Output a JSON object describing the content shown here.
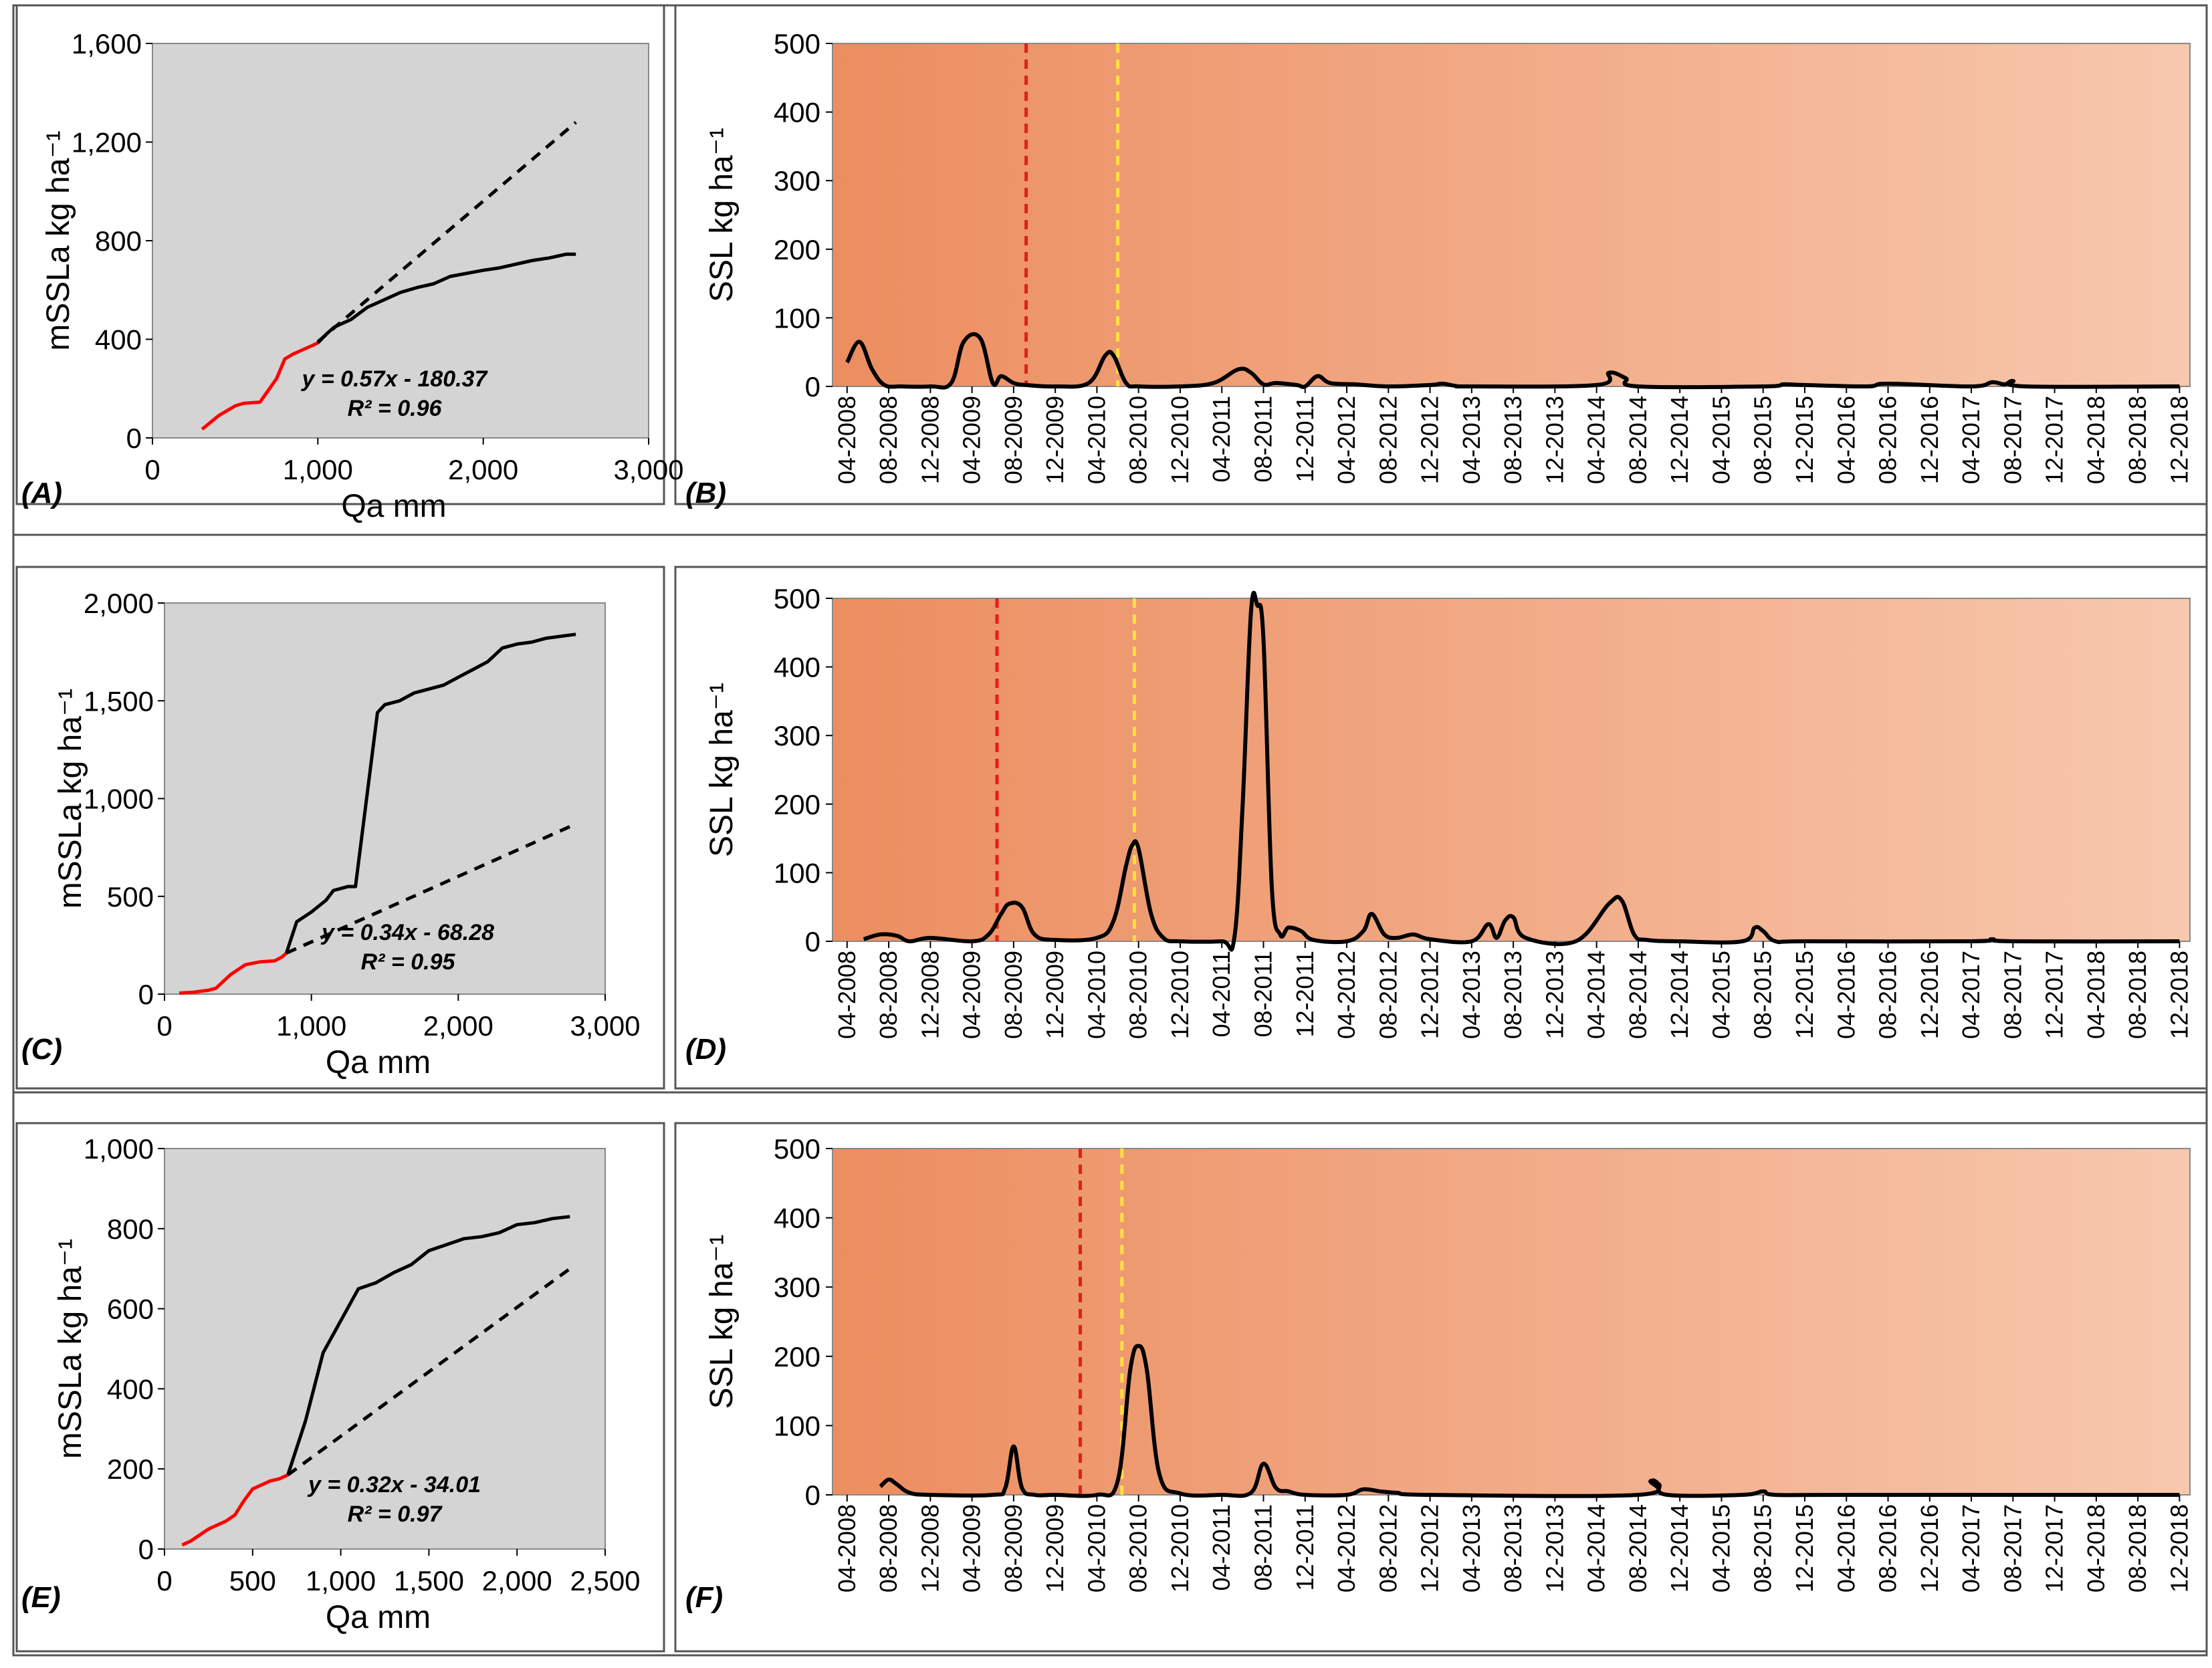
{
  "figure": {
    "type": "multi-panel",
    "panels_left_xlabel": "Qa mm",
    "panels_left_ylabel": "mSSLa kg ha⁻¹",
    "panels_right_ylabel": "SSL kg ha⁻¹",
    "colors": {
      "plot_bg_left": "#d4d4d4",
      "gradient_start": "#ec8d5f",
      "gradient_end": "#f7c8ae",
      "red_line": "#ff0000",
      "red_dashed": "#e0201a",
      "yellow_dashed": "#ffe040",
      "black": "#000000"
    }
  },
  "chart_data": [
    {
      "id": "A",
      "panel_label": "(A)",
      "type": "line",
      "xlabel": "Qa mm",
      "ylabel": "mSSLa kg ha⁻¹",
      "xlim": [
        0,
        3000
      ],
      "ylim": [
        0,
        1600
      ],
      "xticks": [
        0,
        1000,
        2000,
        3000
      ],
      "xtick_labels": [
        "0",
        "1,000",
        "2,000",
        "3,000"
      ],
      "yticks": [
        0,
        400,
        800,
        1200,
        1600
      ],
      "ytick_labels": [
        "0",
        "400",
        "800",
        "1,200",
        "1,600"
      ],
      "series": [
        {
          "name": "observed-red",
          "color": "#ff0000",
          "style": "solid",
          "x": [
            300,
            400,
            500,
            550,
            650,
            750,
            800,
            850,
            950,
            1000
          ],
          "y": [
            35,
            90,
            130,
            140,
            145,
            240,
            320,
            340,
            370,
            385
          ]
        },
        {
          "name": "observed-black",
          "color": "#000000",
          "style": "solid",
          "x": [
            1000,
            1050,
            1100,
            1200,
            1300,
            1400,
            1500,
            1600,
            1700,
            1800,
            2000,
            2100,
            2200,
            2300,
            2400,
            2500,
            2560
          ],
          "y": [
            385,
            420,
            450,
            480,
            530,
            560,
            590,
            610,
            625,
            655,
            680,
            690,
            705,
            720,
            730,
            745,
            745
          ]
        },
        {
          "name": "trend",
          "color": "#000000",
          "style": "dashed",
          "x": [
            1000,
            2560
          ],
          "y": [
            390,
            1280
          ]
        }
      ],
      "equation": "y = 0.57x - 180.37",
      "r2": "R² = 0.96"
    },
    {
      "id": "B",
      "panel_label": "(B)",
      "type": "line",
      "xlabel": "",
      "ylabel": "SSL kg ha⁻¹",
      "xlim": [
        0,
        32
      ],
      "ylim": [
        0,
        500
      ],
      "yticks": [
        0,
        100,
        200,
        300,
        400,
        500
      ],
      "categories": [
        "04-2008",
        "08-2008",
        "12-2008",
        "04-2009",
        "08-2009",
        "12-2009",
        "04-2010",
        "08-2010",
        "12-2010",
        "04-2011",
        "08-2011",
        "12-2011",
        "04-2012",
        "08-2012",
        "12-2012",
        "04-2013",
        "08-2013",
        "12-2013",
        "04-2014",
        "08-2014",
        "12-2014",
        "04-2015",
        "08-2015",
        "12-2015",
        "04-2016",
        "08-2016",
        "12-2016",
        "04-2017",
        "08-2017",
        "12-2017",
        "04-2018",
        "08-2018",
        "12-2018"
      ],
      "red_marker_x": 4.3,
      "yellow_marker_x": 6.5,
      "series": [
        {
          "name": "SSL",
          "color": "#000000",
          "x": [
            0,
            0.3,
            0.6,
            0.9,
            1.3,
            2.0,
            2.5,
            2.8,
            3.2,
            3.5,
            3.7,
            4.0,
            4.3,
            5.0,
            5.8,
            6.2,
            6.4,
            6.7,
            7.0,
            8.0,
            8.8,
            9.4,
            9.7,
            10.0,
            10.3,
            10.8,
            11.0,
            11.3,
            11.6,
            12.2,
            13.0,
            14.0,
            14.3,
            14.6,
            15.0,
            18.0,
            18.3,
            18.7,
            19.0,
            22.0,
            22.5,
            23.0,
            24.5,
            25.0,
            27.0,
            27.5,
            27.8,
            28.0,
            28.3,
            32.0
          ],
          "y": [
            35,
            65,
            25,
            2,
            0,
            0,
            5,
            65,
            70,
            5,
            15,
            5,
            2,
            0,
            5,
            45,
            45,
            5,
            0,
            0,
            5,
            25,
            20,
            3,
            5,
            2,
            0,
            15,
            5,
            3,
            0,
            2,
            4,
            1,
            0,
            2,
            20,
            12,
            0,
            0,
            3,
            2,
            0,
            4,
            0,
            6,
            3,
            8,
            0,
            0
          ]
        }
      ]
    },
    {
      "id": "C",
      "panel_label": "(C)",
      "type": "line",
      "xlabel": "Qa mm",
      "ylabel": "mSSLa kg ha⁻¹",
      "xlim": [
        0,
        3000
      ],
      "ylim": [
        0,
        2000
      ],
      "xticks": [
        0,
        1000,
        2000,
        3000
      ],
      "xtick_labels": [
        "0",
        "1,000",
        "2,000",
        "3,000"
      ],
      "yticks": [
        0,
        500,
        1000,
        1500,
        2000
      ],
      "ytick_labels": [
        "0",
        "500",
        "1,000",
        "1,500",
        "2,000"
      ],
      "series": [
        {
          "name": "observed-red",
          "color": "#ff0000",
          "style": "solid",
          "x": [
            100,
            200,
            300,
            350,
            450,
            550,
            650,
            750,
            800,
            830
          ],
          "y": [
            5,
            10,
            20,
            30,
            100,
            150,
            165,
            170,
            190,
            210
          ]
        },
        {
          "name": "observed-black",
          "color": "#000000",
          "style": "solid",
          "x": [
            830,
            900,
            1000,
            1100,
            1150,
            1250,
            1300,
            1450,
            1500,
            1600,
            1700,
            1800,
            1900,
            2000,
            2100,
            2200,
            2300,
            2400,
            2500,
            2600,
            2700,
            2800
          ],
          "y": [
            210,
            370,
            420,
            480,
            530,
            550,
            550,
            1440,
            1480,
            1500,
            1540,
            1560,
            1580,
            1620,
            1660,
            1700,
            1770,
            1790,
            1800,
            1820,
            1830,
            1840
          ]
        },
        {
          "name": "trend",
          "color": "#000000",
          "style": "dashed",
          "x": [
            830,
            2800
          ],
          "y": [
            210,
            870
          ]
        }
      ],
      "equation": "y = 0.34x - 68.28",
      "r2": "R² = 0.95"
    },
    {
      "id": "D",
      "panel_label": "(D)",
      "type": "line",
      "xlabel": "",
      "ylabel": "SSL kg ha⁻¹",
      "xlim": [
        0,
        32
      ],
      "ylim": [
        0,
        500
      ],
      "yticks": [
        0,
        100,
        200,
        300,
        400,
        500
      ],
      "categories": [
        "04-2008",
        "08-2008",
        "12-2008",
        "04-2009",
        "08-2009",
        "12-2009",
        "04-2010",
        "08-2010",
        "12-2010",
        "04-2011",
        "08-2011",
        "12-2011",
        "04-2012",
        "08-2012",
        "12-2012",
        "04-2013",
        "08-2013",
        "12-2013",
        "04-2014",
        "08-2014",
        "12-2014",
        "04-2015",
        "08-2015",
        "12-2015",
        "04-2016",
        "08-2016",
        "12-2016",
        "04-2017",
        "08-2017",
        "12-2017",
        "04-2018",
        "08-2018",
        "12-2018"
      ],
      "red_marker_x": 3.6,
      "yellow_marker_x": 6.9,
      "series": [
        {
          "name": "SSL",
          "color": "#000000",
          "x": [
            0.4,
            0.8,
            1.2,
            1.5,
            2.0,
            3.0,
            3.4,
            3.7,
            3.9,
            4.2,
            4.5,
            5.0,
            6.0,
            6.4,
            6.7,
            6.85,
            7.0,
            7.3,
            7.6,
            8.0,
            9.0,
            9.3,
            9.5,
            9.7,
            9.85,
            10.0,
            10.2,
            10.4,
            10.6,
            10.9,
            11.2,
            12.0,
            12.4,
            12.6,
            12.9,
            13.2,
            13.6,
            14.0,
            15.0,
            15.4,
            15.6,
            15.8,
            16.0,
            16.3,
            17.5,
            18.3,
            18.6,
            18.9,
            19.2,
            20.0,
            21.5,
            21.8,
            22.0,
            22.3,
            23.0,
            27.0,
            27.5,
            28.0,
            32.0
          ],
          "y": [
            3,
            10,
            8,
            0,
            5,
            0,
            10,
            40,
            55,
            50,
            10,
            2,
            5,
            30,
            110,
            140,
            135,
            40,
            5,
            0,
            0,
            5,
            200,
            480,
            490,
            440,
            80,
            10,
            20,
            15,
            2,
            0,
            15,
            40,
            10,
            5,
            10,
            3,
            0,
            25,
            5,
            30,
            35,
            5,
            0,
            55,
            60,
            10,
            2,
            0,
            0,
            20,
            15,
            0,
            0,
            0,
            3,
            0,
            0
          ]
        }
      ]
    },
    {
      "id": "E",
      "panel_label": "(E)",
      "type": "line",
      "xlabel": "Qa mm",
      "ylabel": "mSSLa kg ha⁻¹",
      "xlim": [
        0,
        2500
      ],
      "ylim": [
        0,
        1000
      ],
      "xticks": [
        0,
        500,
        1000,
        1500,
        2000,
        2500
      ],
      "xtick_labels": [
        "0",
        "500",
        "1,000",
        "1,500",
        "2,000",
        "2,500"
      ],
      "yticks": [
        0,
        200,
        400,
        600,
        800,
        1000
      ],
      "ytick_labels": [
        "0",
        "200",
        "400",
        "600",
        "800",
        "1,000"
      ],
      "series": [
        {
          "name": "observed-red",
          "color": "#ff0000",
          "style": "solid",
          "x": [
            100,
            150,
            200,
            250,
            300,
            350,
            400,
            450,
            500,
            550,
            600,
            650,
            700
          ],
          "y": [
            10,
            20,
            35,
            50,
            60,
            70,
            85,
            120,
            150,
            160,
            170,
            175,
            185
          ]
        },
        {
          "name": "observed-black",
          "color": "#000000",
          "style": "solid",
          "x": [
            700,
            800,
            900,
            1000,
            1100,
            1200,
            1300,
            1400,
            1500,
            1600,
            1700,
            1800,
            1900,
            2000,
            2100,
            2200,
            2300
          ],
          "y": [
            185,
            320,
            490,
            570,
            650,
            665,
            690,
            710,
            745,
            760,
            775,
            780,
            790,
            810,
            815,
            825,
            830
          ]
        },
        {
          "name": "trend",
          "color": "#000000",
          "style": "dashed",
          "x": [
            700,
            2300
          ],
          "y": [
            185,
            700
          ]
        }
      ],
      "equation": "y = 0.32x - 34.01",
      "r2": "R² = 0.97"
    },
    {
      "id": "F",
      "panel_label": "(F)",
      "type": "line",
      "xlabel": "",
      "ylabel": "SSL kg ha⁻¹",
      "xlim": [
        0,
        32
      ],
      "ylim": [
        0,
        500
      ],
      "yticks": [
        0,
        100,
        200,
        300,
        400,
        500
      ],
      "categories": [
        "04-2008",
        "08-2008",
        "12-2008",
        "04-2009",
        "08-2009",
        "12-2009",
        "04-2010",
        "08-2010",
        "12-2010",
        "04-2011",
        "08-2011",
        "12-2011",
        "04-2012",
        "08-2012",
        "12-2012",
        "04-2013",
        "08-2013",
        "12-2013",
        "04-2014",
        "08-2014",
        "12-2014",
        "04-2015",
        "08-2015",
        "12-2015",
        "04-2016",
        "08-2016",
        "12-2016",
        "04-2017",
        "08-2017",
        "12-2017",
        "04-2018",
        "08-2018",
        "12-2018"
      ],
      "red_marker_x": 5.6,
      "yellow_marker_x": 6.6,
      "series": [
        {
          "name": "SSL",
          "color": "#000000",
          "x": [
            0.8,
            1.0,
            1.2,
            1.5,
            2.0,
            3.5,
            3.8,
            4.0,
            4.2,
            4.5,
            5.0,
            6.0,
            6.5,
            6.8,
            7.0,
            7.2,
            7.5,
            8.0,
            9.0,
            9.7,
            10.0,
            10.3,
            10.6,
            11.0,
            12.0,
            12.4,
            12.8,
            13.2,
            14.0,
            19.0,
            19.3,
            19.5,
            19.7,
            21.5,
            22.0,
            22.3,
            24.0,
            32.0
          ],
          "y": [
            12,
            22,
            15,
            3,
            0,
            0,
            10,
            70,
            10,
            0,
            0,
            0,
            20,
            180,
            215,
            180,
            30,
            2,
            0,
            3,
            45,
            10,
            5,
            0,
            0,
            8,
            5,
            3,
            0,
            0,
            20,
            15,
            0,
            0,
            5,
            0,
            0,
            0
          ]
        }
      ]
    }
  ]
}
